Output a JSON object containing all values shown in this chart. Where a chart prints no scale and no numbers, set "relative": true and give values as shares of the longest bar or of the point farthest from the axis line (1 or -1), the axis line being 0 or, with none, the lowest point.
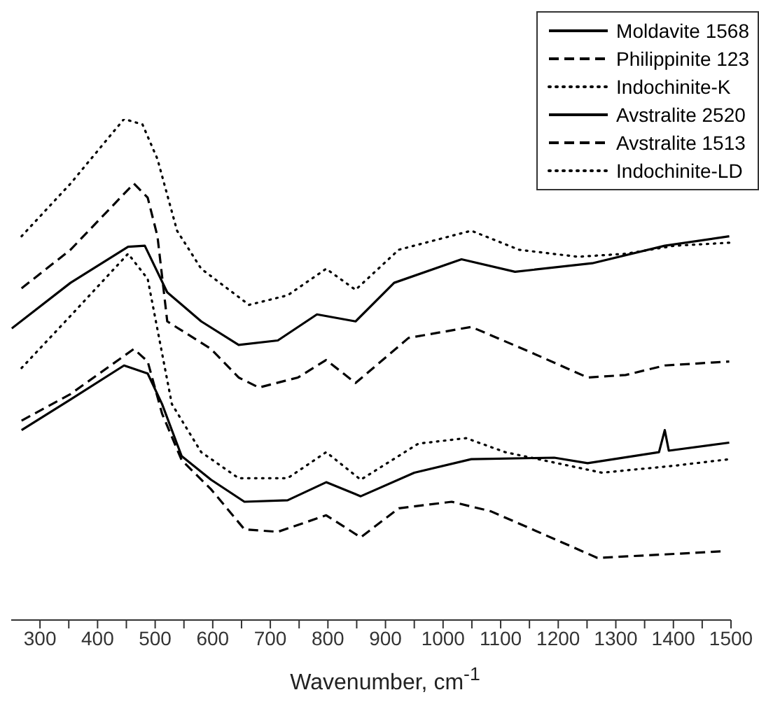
{
  "chart_data": {
    "type": "line",
    "xlabel": "Wavenumber, cm$^{-1}$",
    "relative": true,
    "xlim": [
      250,
      1500
    ],
    "xticks": [
      300,
      {
        "value": 350,
        "label": null
      },
      400,
      {
        "value": 450,
        "label": null
      },
      500,
      {
        "value": 550,
        "label": null
      },
      600,
      {
        "value": 650,
        "label": null
      },
      700,
      {
        "value": 750,
        "label": null
      },
      800,
      {
        "value": 850,
        "label": null
      },
      900,
      {
        "value": 950,
        "label": null
      },
      1000,
      {
        "value": 1050,
        "label": null
      },
      1100,
      {
        "value": 1150,
        "label": null
      },
      1200,
      {
        "value": 1250,
        "label": null
      },
      1300,
      {
        "value": 1350,
        "label": null
      },
      1400,
      {
        "value": 1450,
        "label": null
      },
      1500
    ],
    "grid": false,
    "legend": "top right",
    "tick_labels": "x",
    "series": [
      {
        "name": "Moldavite 1568",
        "color": "#000000",
        "line_style": "solid",
        "x": [
          251,
          353,
          453,
          482,
          521,
          580,
          645,
          713,
          781,
          848,
          915,
          1032,
          1125,
          1259,
          1385,
          1497
        ],
        "values": [
          0.582,
          0.673,
          0.745,
          0.747,
          0.654,
          0.596,
          0.549,
          0.558,
          0.61,
          0.596,
          0.673,
          0.72,
          0.695,
          0.712,
          0.747,
          0.766
        ]
      },
      {
        "name": "Philippinite 123",
        "color": "#000000",
        "line_style": "dashed",
        "x": [
          268,
          353,
          463,
          487,
          504,
          521,
          597,
          645,
          680,
          748,
          797,
          848,
          940,
          1049,
          1149,
          1251,
          1317,
          1385,
          1497
        ],
        "values": [
          0.662,
          0.739,
          0.871,
          0.843,
          0.766,
          0.596,
          0.541,
          0.484,
          0.464,
          0.484,
          0.519,
          0.473,
          0.563,
          0.585,
          0.536,
          0.484,
          0.489,
          0.508,
          0.516
        ]
      },
      {
        "name": "Indochinite-K",
        "color": "#000000",
        "line_style": "dotted",
        "x": [
          268,
          353,
          446,
          478,
          504,
          538,
          580,
          663,
          730,
          797,
          848,
          923,
          1049,
          1132,
          1234,
          1317,
          1402,
          1497
        ],
        "values": [
          0.766,
          0.871,
          1,
          0.989,
          0.92,
          0.777,
          0.701,
          0.629,
          0.648,
          0.701,
          0.659,
          0.739,
          0.777,
          0.739,
          0.725,
          0.731,
          0.747,
          0.753
        ]
      },
      {
        "name": "Avstralite 2520",
        "color": "#000000",
        "line_style": "solid",
        "x": [
          268,
          353,
          446,
          487,
          512,
          546,
          597,
          655,
          730,
          797,
          857,
          950,
          1049,
          1193,
          1251,
          1375,
          1385,
          1392,
          1497
        ],
        "values": [
          0.379,
          0.44,
          0.508,
          0.492,
          0.431,
          0.327,
          0.28,
          0.236,
          0.239,
          0.275,
          0.247,
          0.294,
          0.321,
          0.324,
          0.313,
          0.335,
          0.379,
          0.338,
          0.354
        ]
      },
      {
        "name": "Avstralite 1513",
        "color": "#000000",
        "line_style": "dashed",
        "x": [
          268,
          353,
          463,
          487,
          512,
          546,
          597,
          655,
          713,
          797,
          857,
          923,
          1015,
          1083,
          1149,
          1268,
          1402,
          1482
        ],
        "values": [
          0.398,
          0.451,
          0.541,
          0.516,
          0.412,
          0.319,
          0.261,
          0.181,
          0.176,
          0.209,
          0.165,
          0.223,
          0.236,
          0.217,
          0.184,
          0.124,
          0.132,
          0.137
        ]
      },
      {
        "name": "Indochinite-LD",
        "color": "#000000",
        "line_style": "dotted",
        "x": [
          268,
          353,
          453,
          487,
          529,
          580,
          645,
          730,
          797,
          857,
          957,
          1040,
          1108,
          1276,
          1402,
          1497
        ],
        "values": [
          0.503,
          0.607,
          0.731,
          0.681,
          0.431,
          0.335,
          0.283,
          0.283,
          0.335,
          0.28,
          0.352,
          0.363,
          0.335,
          0.294,
          0.308,
          0.321
        ]
      }
    ]
  }
}
